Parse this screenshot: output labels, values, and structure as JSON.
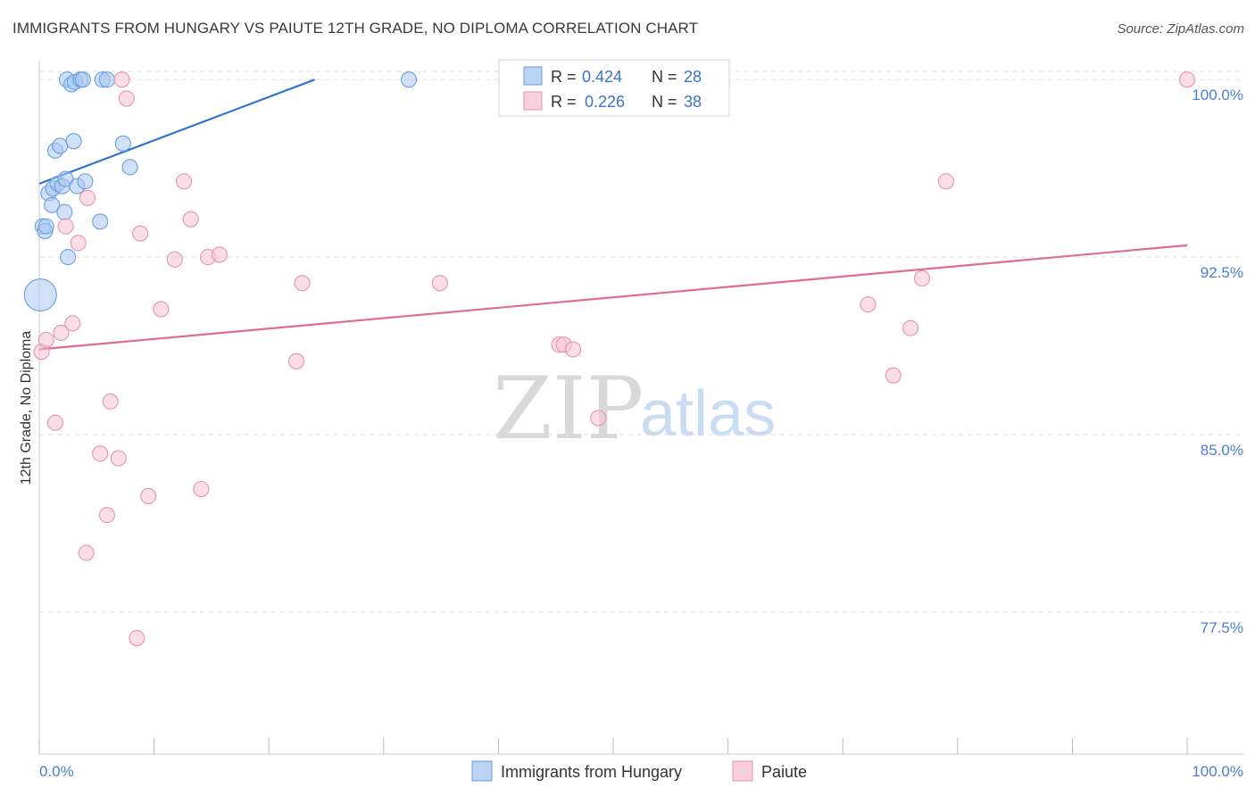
{
  "title": "IMMIGRANTS FROM HUNGARY VS PAIUTE 12TH GRADE, NO DIPLOMA CORRELATION CHART",
  "source": "Source: ZipAtlas.com",
  "watermark": {
    "zip": "ZIP",
    "atlas": "atlas"
  },
  "colors": {
    "blue_fill": "#a9c8f0",
    "blue_stroke": "#6a9ee0",
    "blue_line": "#2f74d0",
    "pink_fill": "#f6c3d3",
    "pink_stroke": "#e693ae",
    "pink_line": "#e06b97",
    "tick_label": "#4a7fd4",
    "grid": "#dddddd"
  },
  "legend": {
    "rows": [
      {
        "r_label": "R =",
        "r_value": "0.424",
        "n_label": "N =",
        "n_value": "28"
      },
      {
        "r_label": "R =",
        "r_value": "0.226",
        "n_label": "N =",
        "n_value": "38"
      }
    ]
  },
  "chart_data": {
    "type": "scatter",
    "xlabel": "",
    "ylabel": "12th Grade, No Diploma",
    "xlim": [
      0,
      100
    ],
    "ylim": [
      71.5,
      100.8
    ],
    "x_tick_labels": [
      "0.0%",
      "100.0%"
    ],
    "y_ticks": [
      100.0,
      92.5,
      85.0,
      77.5
    ],
    "y_tick_labels": [
      "100.0%",
      "92.5%",
      "85.0%",
      "77.5%"
    ],
    "grid": true,
    "legend_position": "bottom-center",
    "series": [
      {
        "name": "Immigrants from Hungary",
        "color": "blue",
        "trend": {
          "x": [
            0,
            24
          ],
          "y": [
            95.6,
            100.0
          ]
        },
        "points": [
          {
            "x": 0.1,
            "y": 90.9,
            "big": true
          },
          {
            "x": 0.3,
            "y": 93.8
          },
          {
            "x": 0.5,
            "y": 93.6
          },
          {
            "x": 0.6,
            "y": 93.8
          },
          {
            "x": 0.8,
            "y": 95.2
          },
          {
            "x": 1.1,
            "y": 94.7
          },
          {
            "x": 1.2,
            "y": 95.4
          },
          {
            "x": 1.4,
            "y": 97.0
          },
          {
            "x": 1.6,
            "y": 95.6
          },
          {
            "x": 1.8,
            "y": 97.2
          },
          {
            "x": 2.0,
            "y": 95.5
          },
          {
            "x": 2.2,
            "y": 94.4
          },
          {
            "x": 2.3,
            "y": 95.8
          },
          {
            "x": 2.5,
            "y": 92.5
          },
          {
            "x": 2.4,
            "y": 100.0
          },
          {
            "x": 2.8,
            "y": 99.8
          },
          {
            "x": 3.0,
            "y": 97.4
          },
          {
            "x": 3.1,
            "y": 99.9
          },
          {
            "x": 3.3,
            "y": 95.5
          },
          {
            "x": 3.6,
            "y": 100.0
          },
          {
            "x": 3.8,
            "y": 100.0
          },
          {
            "x": 4.0,
            "y": 95.7
          },
          {
            "x": 5.3,
            "y": 94.0
          },
          {
            "x": 5.5,
            "y": 100.0
          },
          {
            "x": 5.9,
            "y": 100.0
          },
          {
            "x": 7.3,
            "y": 97.3
          },
          {
            "x": 7.9,
            "y": 96.3
          },
          {
            "x": 32.2,
            "y": 100.0
          }
        ]
      },
      {
        "name": "Paiute",
        "color": "pink",
        "trend": {
          "x": [
            0,
            100
          ],
          "y": [
            88.6,
            93.0
          ]
        },
        "points": [
          {
            "x": 0.2,
            "y": 88.5
          },
          {
            "x": 0.6,
            "y": 89.0
          },
          {
            "x": 1.4,
            "y": 85.5
          },
          {
            "x": 1.9,
            "y": 89.3
          },
          {
            "x": 2.3,
            "y": 93.8
          },
          {
            "x": 2.9,
            "y": 89.7
          },
          {
            "x": 3.4,
            "y": 93.1
          },
          {
            "x": 4.1,
            "y": 80.0
          },
          {
            "x": 4.2,
            "y": 95.0
          },
          {
            "x": 5.3,
            "y": 84.2
          },
          {
            "x": 5.9,
            "y": 81.6
          },
          {
            "x": 6.2,
            "y": 86.4
          },
          {
            "x": 6.9,
            "y": 84.0
          },
          {
            "x": 7.2,
            "y": 100.0
          },
          {
            "x": 7.6,
            "y": 99.2
          },
          {
            "x": 8.5,
            "y": 76.4
          },
          {
            "x": 8.8,
            "y": 93.5
          },
          {
            "x": 9.5,
            "y": 82.4
          },
          {
            "x": 10.6,
            "y": 90.3
          },
          {
            "x": 11.8,
            "y": 92.4
          },
          {
            "x": 12.6,
            "y": 95.7
          },
          {
            "x": 13.2,
            "y": 94.1
          },
          {
            "x": 14.1,
            "y": 82.7
          },
          {
            "x": 14.7,
            "y": 92.5
          },
          {
            "x": 15.7,
            "y": 92.6
          },
          {
            "x": 22.4,
            "y": 88.1
          },
          {
            "x": 22.9,
            "y": 91.4
          },
          {
            "x": 34.9,
            "y": 91.4
          },
          {
            "x": 45.3,
            "y": 88.8
          },
          {
            "x": 45.7,
            "y": 88.8
          },
          {
            "x": 46.5,
            "y": 88.6
          },
          {
            "x": 48.7,
            "y": 85.7
          },
          {
            "x": 72.2,
            "y": 90.5
          },
          {
            "x": 74.4,
            "y": 87.5
          },
          {
            "x": 75.9,
            "y": 89.5
          },
          {
            "x": 76.9,
            "y": 91.6
          },
          {
            "x": 79.0,
            "y": 95.7
          },
          {
            "x": 100.0,
            "y": 100.0
          }
        ]
      }
    ]
  }
}
